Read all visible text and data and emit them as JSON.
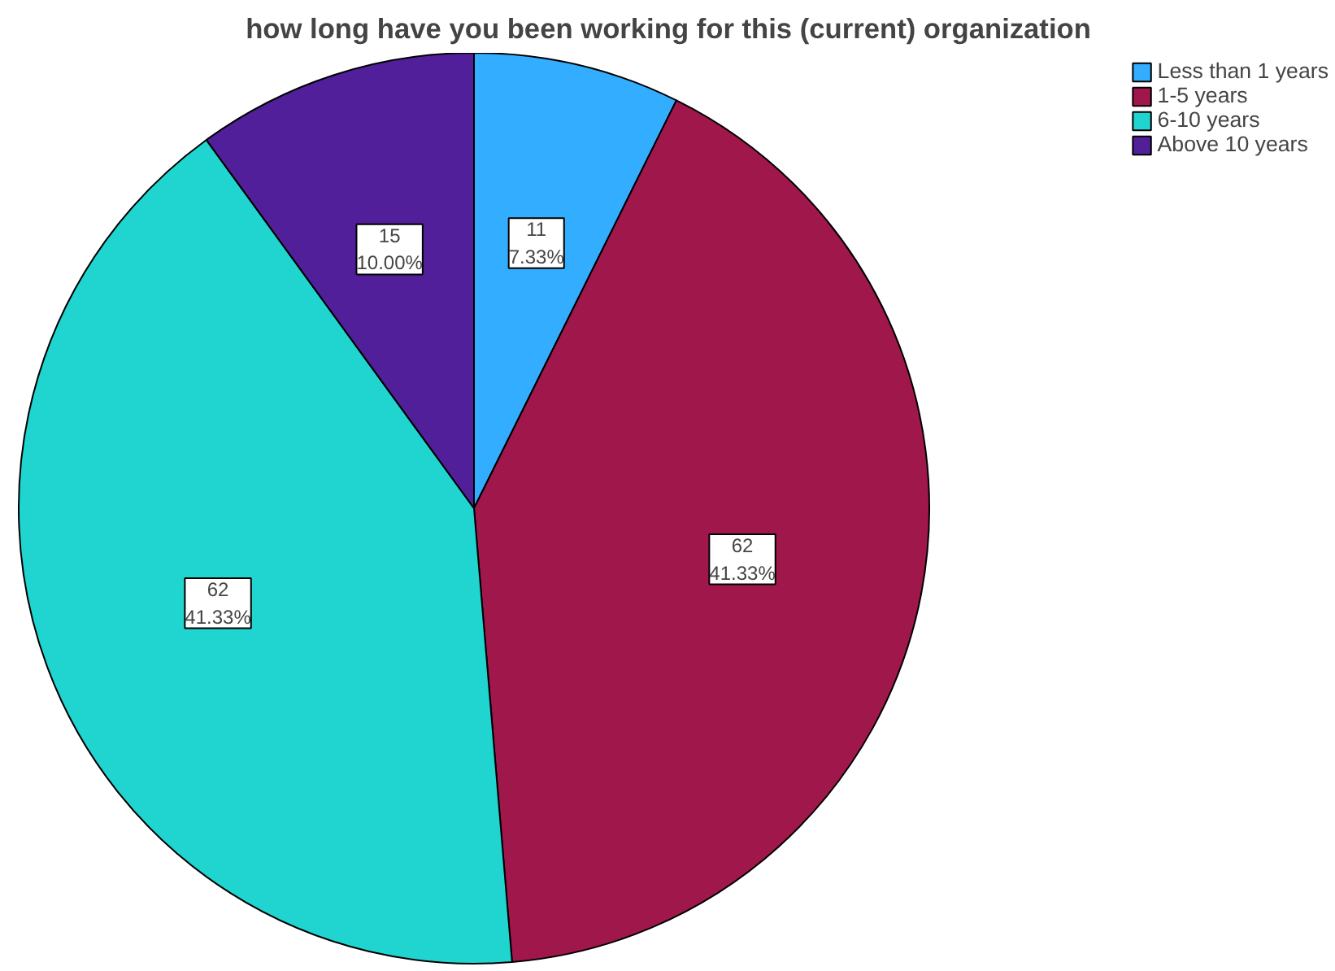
{
  "chart_data": {
    "type": "pie",
    "title": "how long have you been working for this (current) organization",
    "categories": [
      "Less than 1 years",
      "1-5 years",
      "6-10 years",
      "Above 10 years"
    ],
    "values": [
      11,
      62,
      62,
      15
    ],
    "colors": [
      "#33adff",
      "#a0174b",
      "#20d4d0",
      "#511f99"
    ],
    "value_labels": [
      "11\n7.33%",
      "62\n41.33%",
      "62\n41.33%",
      "15\n10.00%"
    ],
    "legend": "top right"
  }
}
